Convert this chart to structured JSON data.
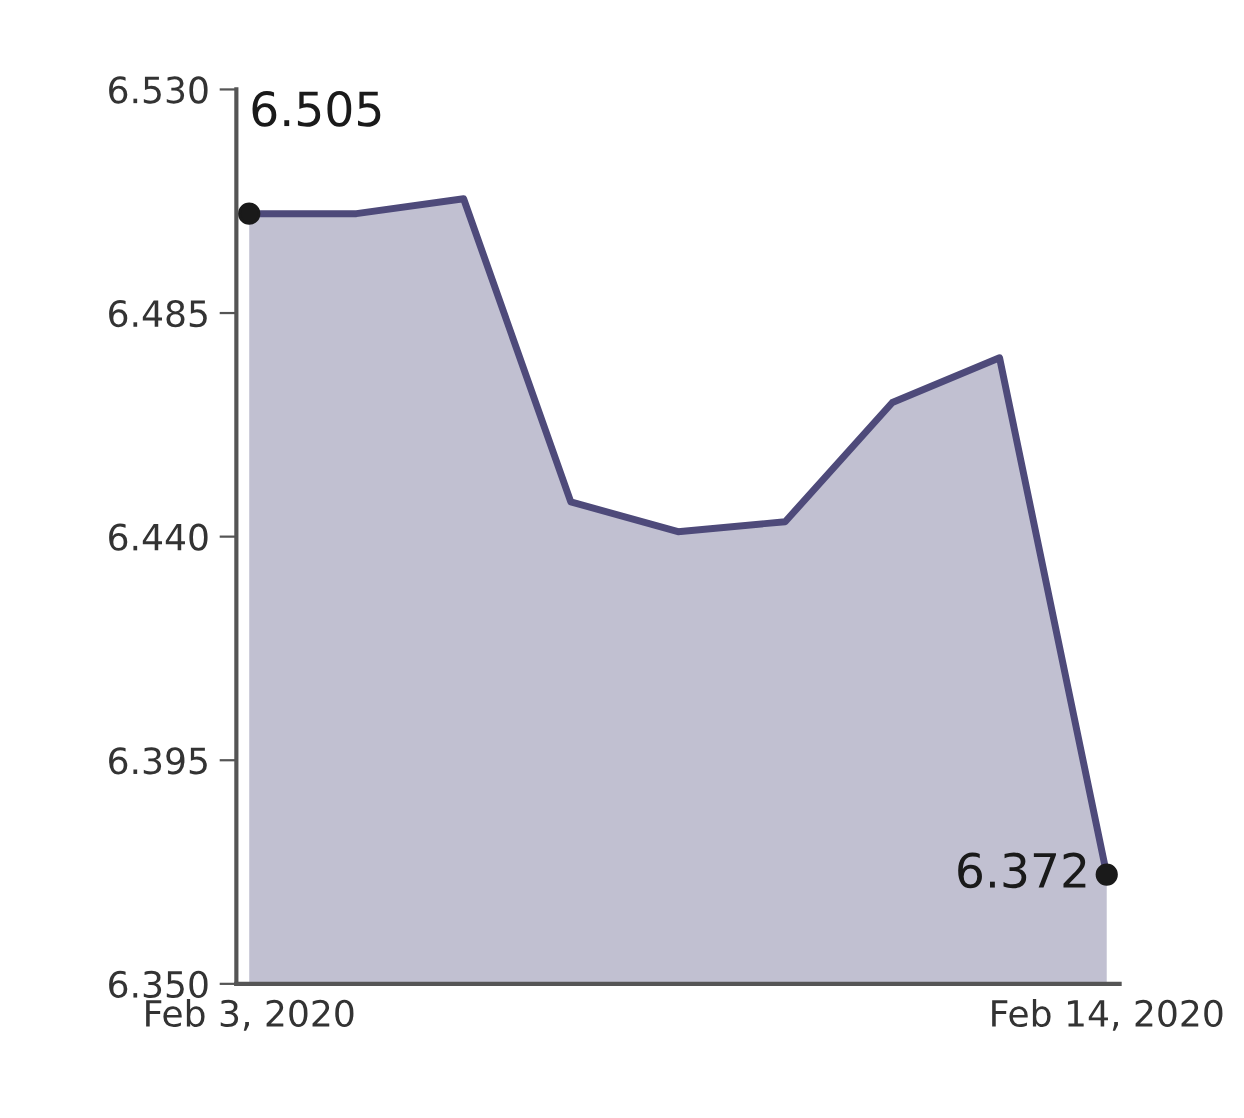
{
  "chart_data": {
    "type": "area",
    "categories": [
      "Feb 3, 2020",
      null,
      null,
      null,
      null,
      null,
      null,
      null,
      "Feb 14, 2020"
    ],
    "series": [
      {
        "color": "#4e4a7a",
        "values": [
          6.505,
          6.505,
          6.508,
          6.447,
          6.441,
          6.443,
          6.467,
          6.476,
          6.372
        ],
        "value_labels": [
          "6.505",
          null,
          null,
          null,
          null,
          null,
          null,
          null,
          "6.372"
        ]
      }
    ],
    "ylim": [
      6.35,
      6.53
    ],
    "yticks": [
      {
        "value": 6.35,
        "label": "6.350"
      },
      {
        "value": 6.395,
        "label": "6.395"
      },
      {
        "value": 6.44,
        "label": "6.440"
      },
      {
        "value": 6.485,
        "label": "6.485"
      },
      {
        "value": 6.53,
        "label": "6.530"
      }
    ],
    "grid": false,
    "legend": false
  }
}
